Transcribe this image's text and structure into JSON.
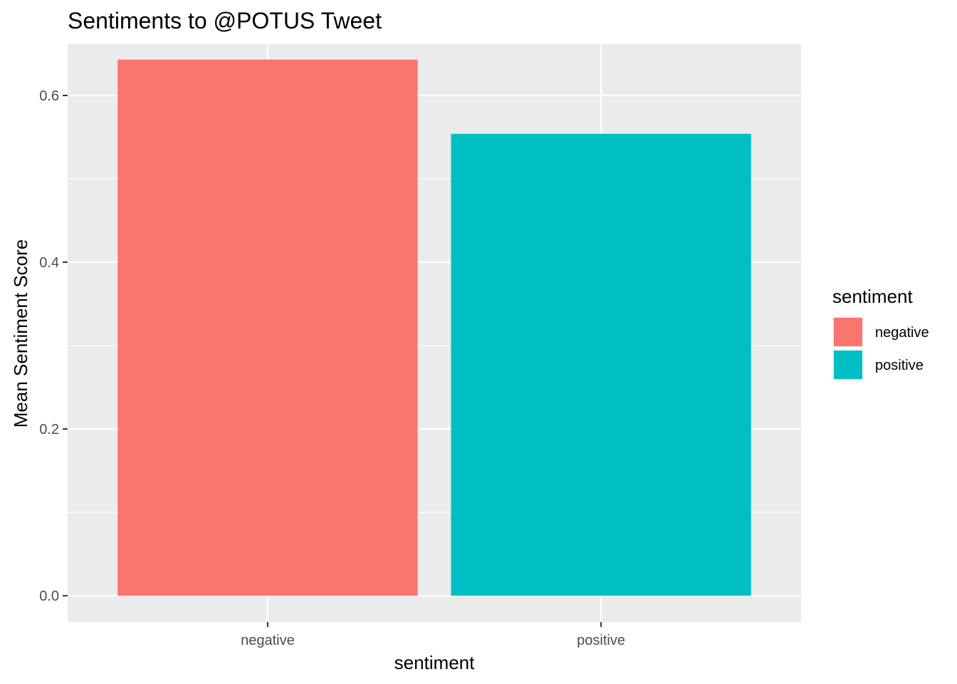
{
  "chart_data": {
    "type": "bar",
    "title": "Sentiments to @POTUS Tweet",
    "xlabel": "sentiment",
    "ylabel": "Mean Sentiment Score",
    "categories": [
      "negative",
      "positive"
    ],
    "values": [
      0.643,
      0.554
    ],
    "colors": [
      "#F8766D",
      "#00BFC4"
    ],
    "ylim": [
      -0.0315,
      0.6615
    ],
    "yticks": [
      0.0,
      0.2,
      0.4,
      0.6
    ],
    "ytick_labels": [
      "0.0",
      "0.2",
      "0.4",
      "0.6"
    ],
    "yminor_ticks": [
      0.1,
      0.3,
      0.5
    ],
    "grid": true,
    "panel_background": "#EBEBEB",
    "legend": {
      "title": "sentiment",
      "position": "right",
      "items": [
        {
          "label": "negative",
          "color": "#F8766D"
        },
        {
          "label": "positive",
          "color": "#00BFC4"
        }
      ]
    }
  }
}
